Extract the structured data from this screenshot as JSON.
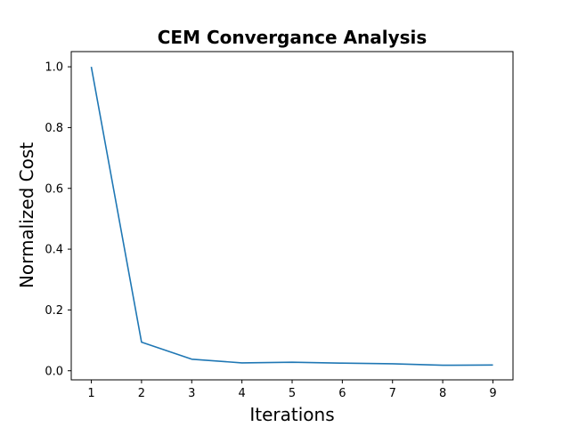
{
  "chart_data": {
    "type": "line",
    "title": "CEM Convergance Analysis",
    "xlabel": "Iterations",
    "ylabel": "Normalized Cost",
    "x": [
      1,
      2,
      3,
      4,
      5,
      6,
      7,
      8,
      9
    ],
    "series": [
      {
        "values": [
          1.0,
          0.094,
          0.038,
          0.026,
          0.028,
          0.025,
          0.023,
          0.018,
          0.019
        ],
        "color": "#1f77b4"
      }
    ],
    "xticks": [
      "1",
      "2",
      "3",
      "4",
      "5",
      "6",
      "7",
      "8",
      "9"
    ],
    "yticks": [
      "0.0",
      "0.2",
      "0.4",
      "0.6",
      "0.8",
      "1.0"
    ],
    "xlim": [
      0.6,
      9.4
    ],
    "ylim": [
      -0.03,
      1.05
    ],
    "grid": false,
    "legend": "none"
  }
}
